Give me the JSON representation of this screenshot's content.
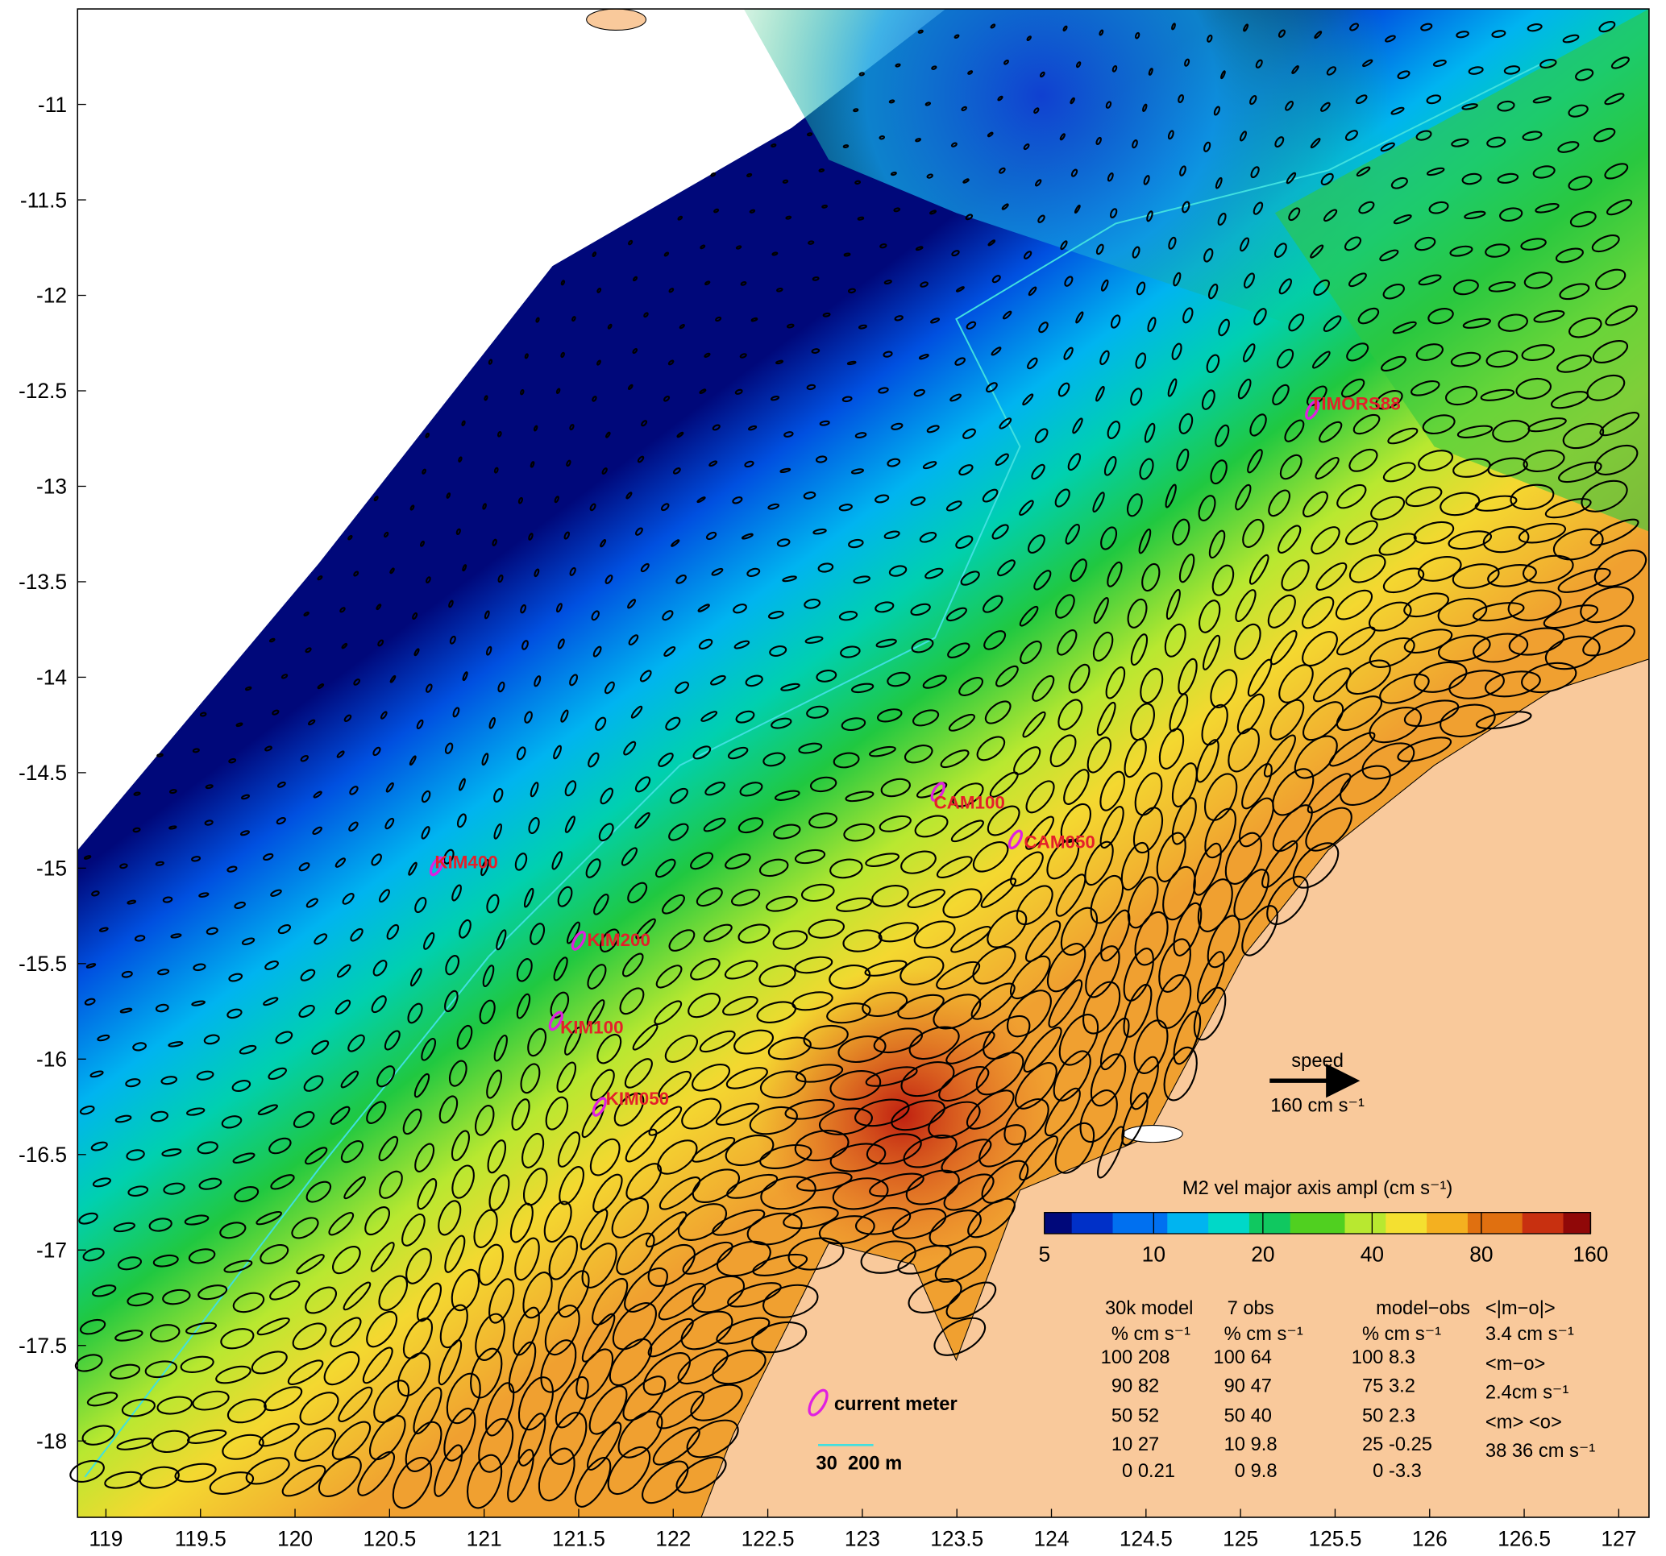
{
  "chart_data": {
    "type": "map",
    "xlim": [
      118.85,
      127.16
    ],
    "ylim": [
      -18.4,
      -10.5
    ],
    "xticks": [
      119,
      119.5,
      120,
      120.5,
      121,
      121.5,
      122,
      122.5,
      123,
      123.5,
      124,
      124.5,
      125,
      125.5,
      126,
      126.5,
      127
    ],
    "yticks": [
      -11,
      -11.5,
      -12,
      -12.5,
      -13,
      -13.5,
      -14,
      -14.5,
      -15,
      -15.5,
      -16,
      -16.5,
      -17,
      -17.5,
      -18
    ],
    "stations": [
      {
        "label": "KIM400",
        "x": 120.75,
        "y": -14.99
      },
      {
        "label": "KIM200",
        "x": 121.5,
        "y": -15.38
      },
      {
        "label": "KIM100",
        "x": 121.38,
        "y": -15.8
      },
      {
        "label": "KIM050",
        "x": 121.61,
        "y": -16.25
      },
      {
        "label": "CAM100",
        "x": 123.4,
        "y": -14.6
      },
      {
        "label": "CAM050",
        "x": 123.81,
        "y": -14.85
      },
      {
        "label": "TIMORS88",
        "x": 125.38,
        "y": -12.6
      }
    ],
    "colorbar": {
      "label": "M2 vel major axis ampl (cm s⁻¹)",
      "scale": "log",
      "lim": [
        5,
        160
      ],
      "ticks": [
        5,
        10,
        20,
        40,
        80,
        160
      ]
    },
    "speed_arrow": {
      "label": "speed",
      "value_label": "160 cm s⁻¹"
    },
    "legend": {
      "current_meter": "current meter",
      "isobaths": "30  200 m"
    }
  },
  "stats": {
    "columns": [
      {
        "title": "30k model",
        "unit": "%  cm s⁻¹",
        "rows": [
          [
            100,
            208
          ],
          [
            90,
            82
          ],
          [
            50,
            52
          ],
          [
            10,
            27
          ],
          [
            0,
            0.21
          ]
        ]
      },
      {
        "title": "7 obs",
        "unit": "%  cm s⁻¹",
        "rows": [
          [
            100,
            64
          ],
          [
            90,
            47
          ],
          [
            50,
            40
          ],
          [
            10,
            9.8
          ],
          [
            0,
            9.8
          ]
        ]
      },
      {
        "title": "model−obs",
        "unit": "%  cm s⁻¹",
        "rows": [
          [
            100,
            8.3
          ],
          [
            75,
            3.2
          ],
          [
            50,
            2.3
          ],
          [
            25,
            -0.25
          ],
          [
            0,
            -3.3
          ]
        ]
      }
    ],
    "summary": [
      "<|m−o|>",
      "3.4 cm s⁻¹",
      "<m−o>",
      "2.4cm s⁻¹",
      "<m> <o>",
      "38 36 cm s⁻¹"
    ]
  }
}
